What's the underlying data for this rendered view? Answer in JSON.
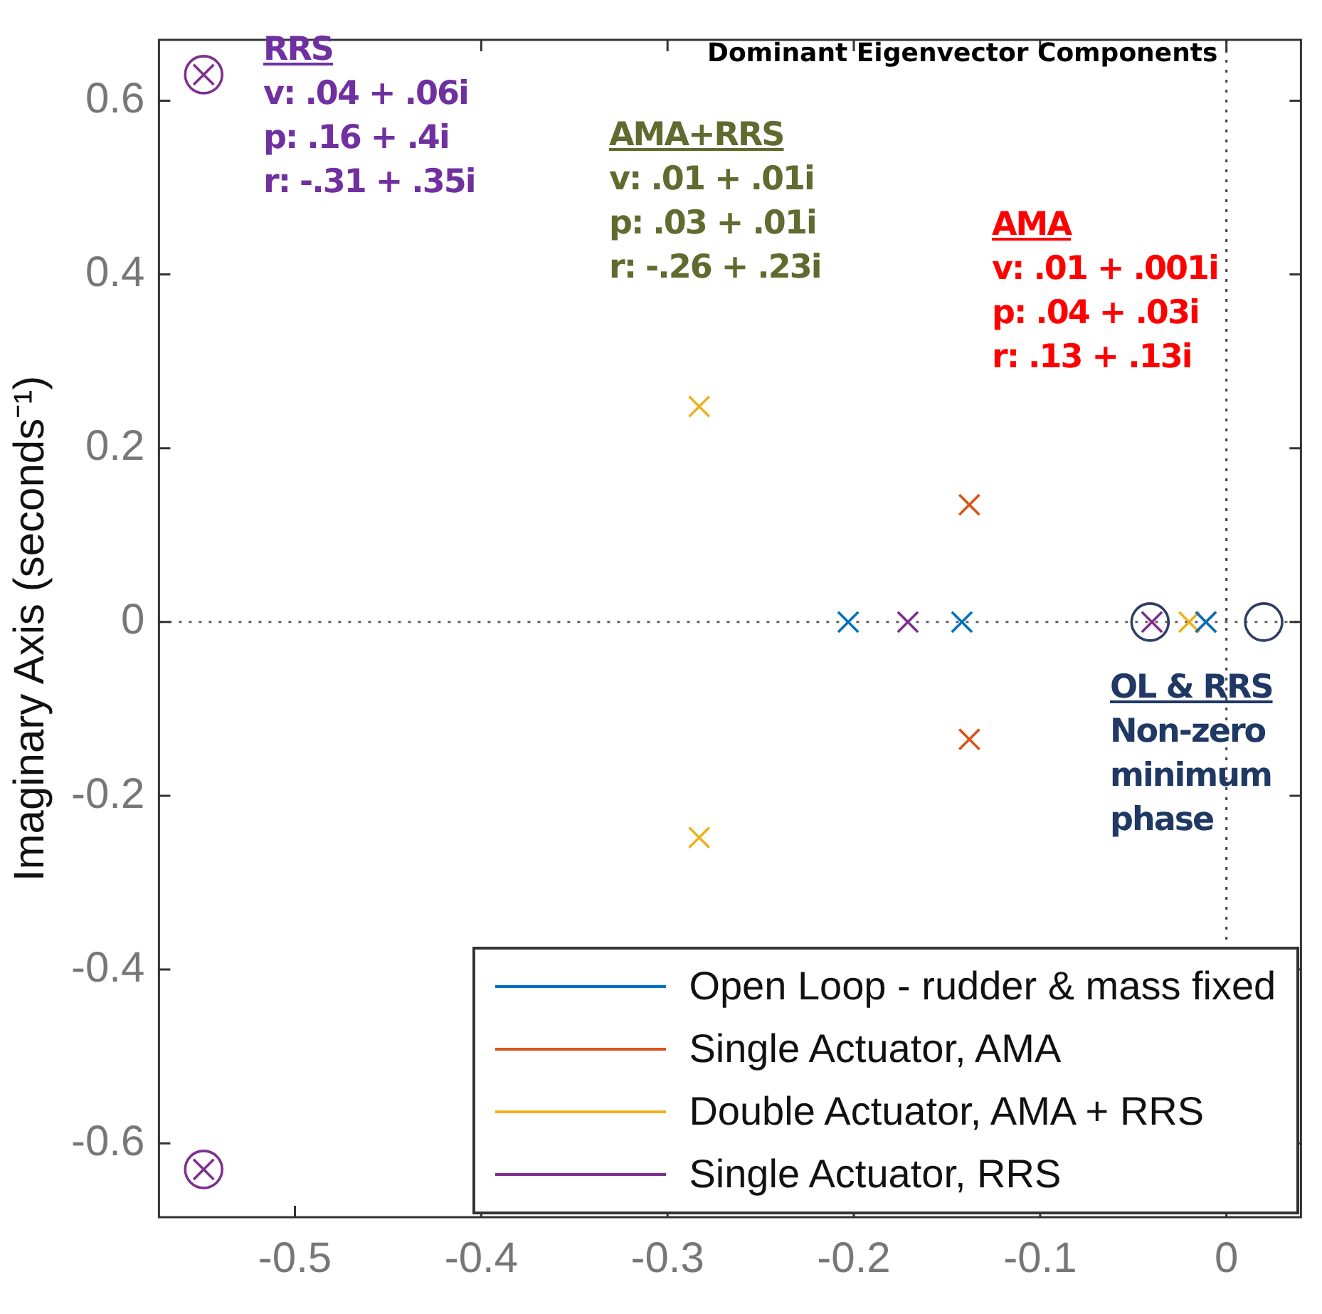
{
  "chart_data": {
    "type": "scatter",
    "ylabel": "Imaginary Axis (seconds⁻¹)",
    "xlim": [
      -0.573,
      0.04
    ],
    "ylim": [
      -0.685,
      0.67
    ],
    "xticks": [
      -0.5,
      -0.4,
      -0.3,
      -0.2,
      -0.1,
      0
    ],
    "yticks": [
      -0.6,
      -0.4,
      -0.2,
      0,
      0.2,
      0.4,
      0.6
    ],
    "grid": false,
    "legend": "bottom right",
    "ref_lines": [
      {
        "axis": "x",
        "value": 0,
        "label": null,
        "color": "#404040",
        "line_style": "dotted"
      },
      {
        "axis": "y",
        "value": 0,
        "label": null,
        "color": "#606060",
        "line_style": "dotted"
      }
    ],
    "series": [
      {
        "name": "Open Loop - rudder & mass fixed",
        "color": "#0072bd",
        "marker": "cross",
        "x": [
          -0.203,
          -0.142,
          -0.011
        ],
        "values": [
          0,
          0,
          0
        ]
      },
      {
        "name": "Single Actuator, AMA",
        "color": "#d95319",
        "marker": "cross",
        "x": [
          -0.138,
          -0.138,
          -0.011
        ],
        "values": [
          0.135,
          -0.135,
          0
        ]
      },
      {
        "name": "Double Actuator, AMA + RRS",
        "color": "#edb120",
        "marker": "cross",
        "x": [
          -0.283,
          -0.283,
          -0.02
        ],
        "values": [
          0.248,
          -0.248,
          0
        ]
      },
      {
        "name": "Single Actuator, RRS",
        "color": "#7e2f8e",
        "marker": "cross",
        "x": [
          -0.549,
          -0.549,
          -0.171,
          -0.04
        ],
        "values": [
          0.63,
          -0.63,
          0,
          0
        ]
      },
      {
        "color": "#2f3e63",
        "marker": "circle",
        "x": [
          -0.041,
          0.02
        ],
        "values": [
          0,
          0
        ]
      },
      {
        "color": "#7e2f8e",
        "marker": "circle",
        "x": [
          -0.549,
          -0.549
        ],
        "values": [
          0.63,
          -0.63
        ]
      }
    ],
    "annotations": [
      "Dominant Eigenvector Components",
      "RRS\nv: .04 + .06i\np: .16 + .4i\nr: -.31 + .35i",
      "AMA+RRS\nv: .01 + .01i\np: .03 + .01i\nr: -.26 + .23i",
      "AMA\nv: .01 + .001i\np: .04 + .03i\nr: .13 + .13i",
      "OL & RRS\nNon-zero\nminimum\nphase"
    ]
  }
}
